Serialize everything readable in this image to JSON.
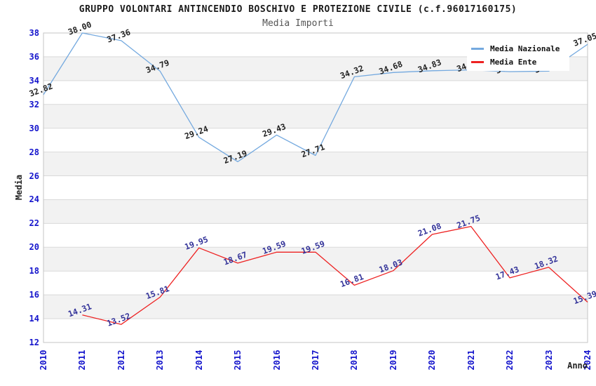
{
  "header": {
    "title": "GRUPPO VOLONTARI ANTINCENDIO BOSCHIVO E PROTEZIONE CIVILE (c.f.96017160175)",
    "subtitle": "Media Importi"
  },
  "legend": {
    "items": [
      {
        "label": "Media Nazionale",
        "color": "#74a9df"
      },
      {
        "label": "Media Ente",
        "color": "#ee2222"
      }
    ]
  },
  "axes": {
    "y_title": "Media",
    "x_title": "Anno",
    "y_ticks": [
      38,
      36,
      34,
      32,
      30,
      28,
      26,
      24,
      22,
      20,
      18,
      16,
      14,
      12
    ],
    "x_ticks": [
      "2010",
      "2011",
      "2012",
      "2013",
      "2014",
      "2015",
      "2016",
      "2017",
      "2018",
      "2019",
      "2020",
      "2021",
      "2022",
      "2023",
      "2024"
    ]
  },
  "chart_data": {
    "type": "line",
    "title": "Media Importi",
    "xlabel": "Anno",
    "ylabel": "Media",
    "ylim": [
      12,
      38
    ],
    "grid_step": 2,
    "band_colors": [
      "#ffffff",
      "#f2f2f2"
    ],
    "gridline_color": "#d9d9d9",
    "border_color": "#c4c4c4",
    "legend_position": "top-right",
    "x": [
      "2010",
      "2011",
      "2012",
      "2013",
      "2014",
      "2015",
      "2016",
      "2017",
      "2018",
      "2019",
      "2020",
      "2021",
      "2022",
      "2023",
      "2024"
    ],
    "series": [
      {
        "name": "Media Nazionale",
        "color": "#74a9df",
        "label_color": "#222222",
        "values": [
          32.82,
          38.0,
          37.36,
          34.79,
          29.24,
          27.19,
          29.43,
          27.71,
          34.32,
          34.68,
          34.83,
          34.9,
          34.75,
          34.8,
          37.05
        ],
        "labels": [
          "32.82",
          "38.00",
          "37.36",
          "34.79",
          "29.24",
          "27.19",
          "29.43",
          "27.71",
          "34.32",
          "34.68",
          "34.83",
          "34.90",
          "34.75",
          "34.80",
          "37.05"
        ],
        "labels_hidden_behind_legend": [
          "2021",
          "2022",
          "2023"
        ]
      },
      {
        "name": "Media Ente",
        "color": "#ee2222",
        "label_color": "#333399",
        "values": [
          null,
          14.31,
          13.52,
          15.81,
          19.95,
          18.67,
          19.59,
          19.59,
          16.81,
          18.03,
          21.08,
          21.75,
          17.43,
          18.32,
          15.39
        ],
        "labels": [
          "",
          "14.31",
          "13.52",
          "15.81",
          "19.95",
          "18.67",
          "19.59",
          "19.59",
          "16.81",
          "18.03",
          "21.08",
          "21.75",
          "17.43",
          "18.32",
          "15.39"
        ]
      }
    ]
  }
}
